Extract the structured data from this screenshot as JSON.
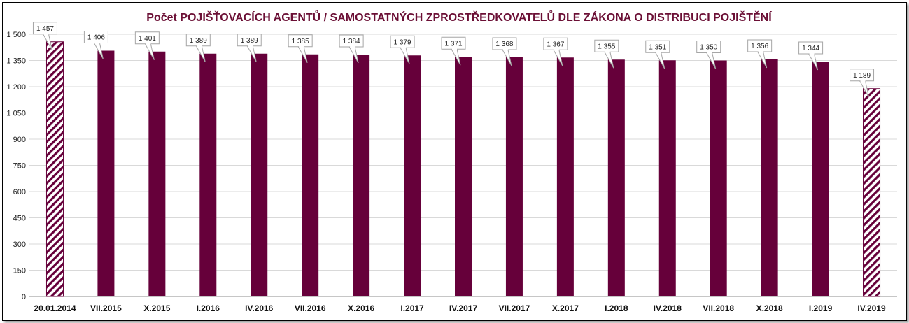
{
  "chart_data": {
    "type": "bar",
    "title": "Počet POJIŠŤOVACÍCH AGENTŮ / SAMOSTATNÝCH ZPROSTŘEDKOVATELŮ DLE ZÁKONA O DISTRIBUCI POJIŠTĚNÍ",
    "xlabel": "",
    "ylabel": "",
    "ylim": [
      0,
      1500
    ],
    "yticks": [
      0,
      150,
      300,
      450,
      600,
      750,
      900,
      1050,
      1200,
      1350,
      1500
    ],
    "ytick_labels": [
      "0",
      "150",
      "300",
      "450",
      "600",
      "750",
      "900",
      "1 050",
      "1 200",
      "1 350",
      "1 500"
    ],
    "grid": true,
    "categories": [
      "20.01.2014",
      "VII.2015",
      "X.2015",
      "I.2016",
      "IV.2016",
      "VII.2016",
      "X.2016",
      "I.2017",
      "IV.2017",
      "VII.2017",
      "X.2017",
      "I.2018",
      "IV.2018",
      "VII.2018",
      "X.2018",
      "I.2019",
      "IV.2019"
    ],
    "values": [
      1457,
      1406,
      1401,
      1389,
      1389,
      1385,
      1384,
      1379,
      1371,
      1368,
      1367,
      1355,
      1351,
      1350,
      1356,
      1344,
      1189
    ],
    "value_labels": [
      "1 457",
      "1 406",
      "1 401",
      "1 389",
      "1 389",
      "1 385",
      "1 384",
      "1 379",
      "1 371",
      "1 368",
      "1 367",
      "1 355",
      "1 351",
      "1 350",
      "1 356",
      "1 344",
      "1 189"
    ],
    "hatched": [
      true,
      false,
      false,
      false,
      false,
      false,
      false,
      false,
      false,
      false,
      false,
      false,
      false,
      false,
      false,
      false,
      true
    ],
    "colors": {
      "bar": "#66003a",
      "title": "#6b0f35",
      "grid": "#d9d9d9",
      "axis": "#8c8c8c",
      "label_border": "#a6a6a6"
    }
  }
}
